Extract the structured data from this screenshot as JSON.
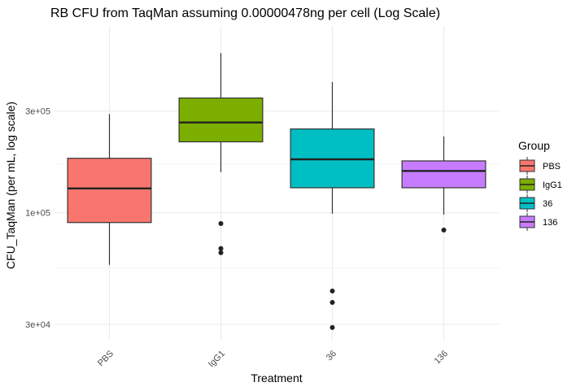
{
  "chart_data": {
    "type": "box",
    "title": "RB CFU from TaqMan assuming 0.00000478ng per cell (Log Scale)",
    "xlabel": "Treatment",
    "ylabel": "CFU_TaqMan (per mL, log scale)",
    "y_scale": "log10",
    "ylim": [
      26000,
      600000
    ],
    "y_ticks": [
      {
        "value": 30000,
        "label": "3e+04"
      },
      {
        "value": 100000,
        "label": "1e+05"
      },
      {
        "value": 300000,
        "label": "3e+05"
      }
    ],
    "y_minor_ticks": [
      55000,
      170000
    ],
    "grid": true,
    "legend": {
      "title": "Group",
      "position": "right",
      "entries": [
        "PBS",
        "IgG1",
        "36",
        "136"
      ]
    },
    "categories": [
      "PBS",
      "IgG1",
      "36",
      "136"
    ],
    "series": [
      {
        "name": "PBS",
        "color": "#F8766D",
        "whisker_low": 57000,
        "q1": 90000,
        "median": 130000,
        "q3": 180000,
        "whisker_high": 290000,
        "outliers": []
      },
      {
        "name": "IgG1",
        "color": "#7CAE00",
        "whisker_low": 155000,
        "q1": 215000,
        "median": 265000,
        "q3": 345000,
        "whisker_high": 560000,
        "outliers": [
          89000,
          68000,
          65000
        ]
      },
      {
        "name": "36",
        "color": "#00BFC4",
        "whisker_low": 99000,
        "q1": 131000,
        "median": 178000,
        "q3": 247000,
        "whisker_high": 410000,
        "outliers": [
          43000,
          38000,
          29000
        ]
      },
      {
        "name": "136",
        "color": "#C77CFF",
        "whisker_low": 98000,
        "q1": 131000,
        "median": 157000,
        "q3": 175000,
        "whisker_high": 228000,
        "outliers": [
          83000
        ]
      }
    ]
  }
}
